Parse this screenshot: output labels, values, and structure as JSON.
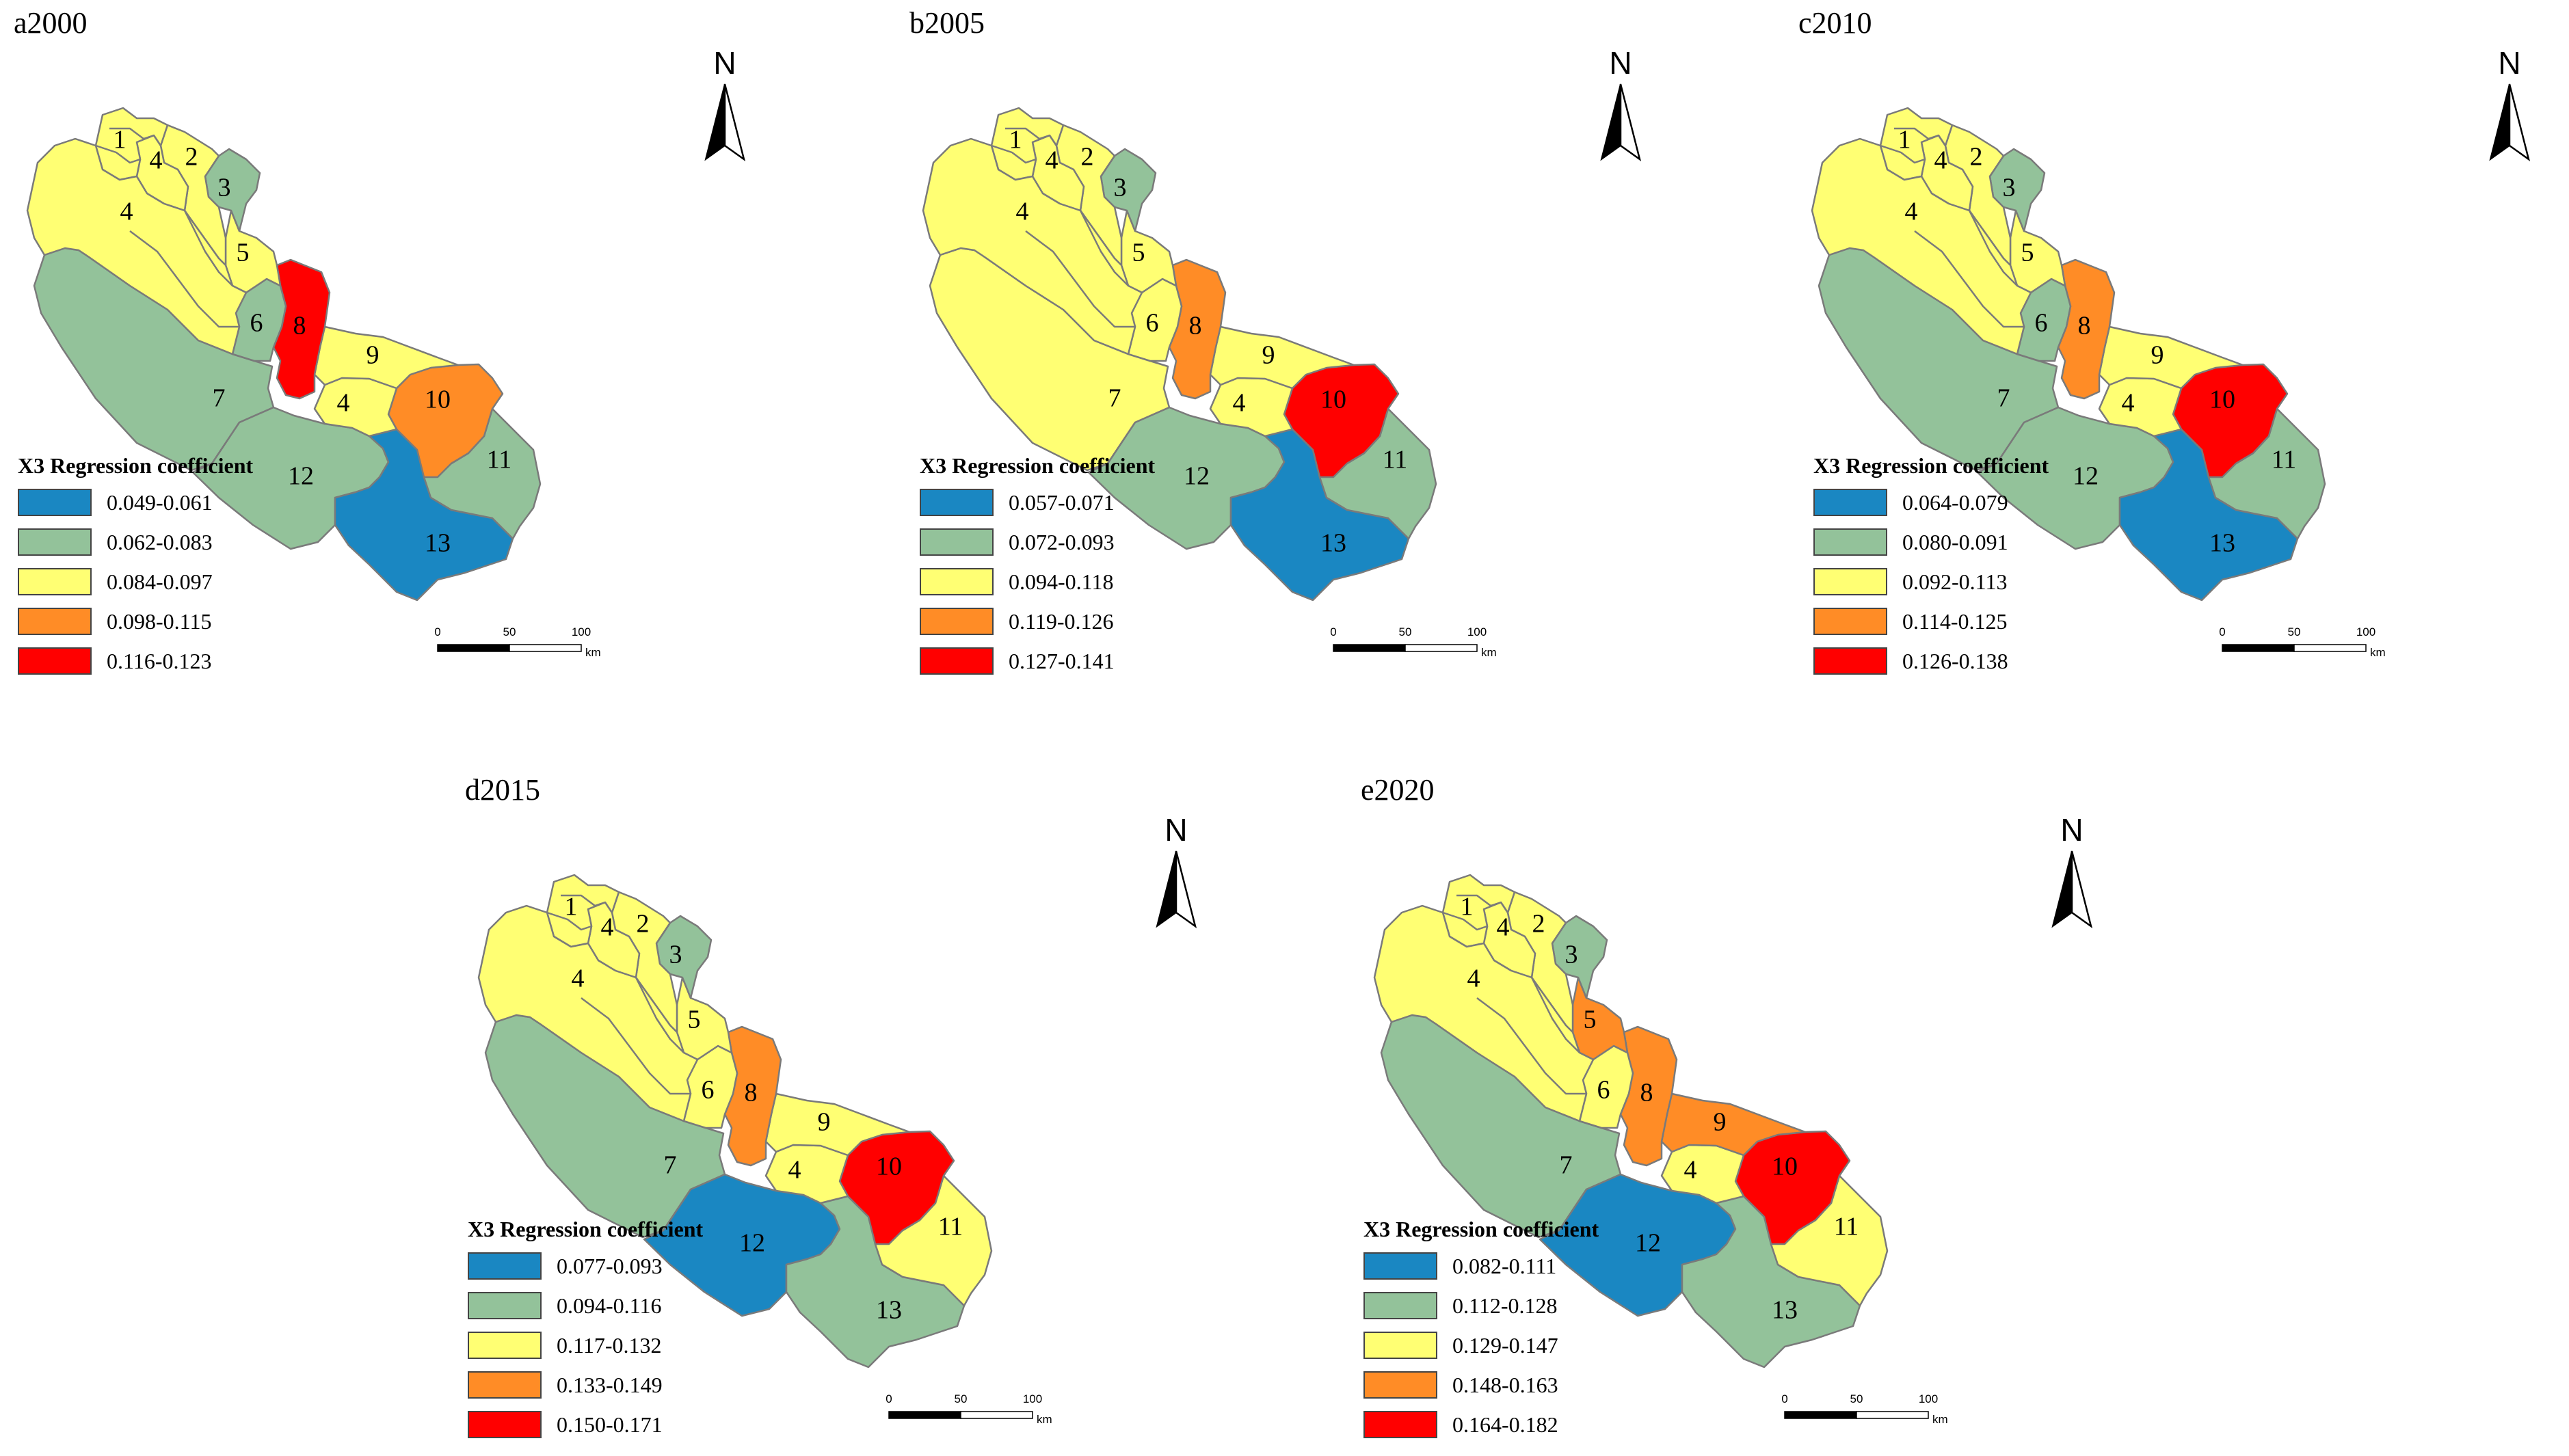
{
  "district_labels": [
    "1",
    "4",
    "2",
    "3",
    "4",
    "5",
    "6",
    "8",
    "7",
    "9",
    "4",
    "10",
    "11",
    "12",
    "13"
  ],
  "north_arrow": {
    "letter": "N"
  },
  "scale_bar": {
    "ticks": [
      "0",
      "50",
      "100"
    ],
    "unit": "km"
  },
  "colors": {
    "blue": "#1a87c2",
    "green": "#93c29a",
    "yellow": "#ffff73",
    "orange": "#ff8c26",
    "red": "#ff0000"
  },
  "panels": [
    {
      "title": "a2000",
      "legend_title": "X3 Regression coefficient",
      "legend": [
        {
          "label": "0.049-0.061",
          "color": "#1a87c2"
        },
        {
          "label": "0.062-0.083",
          "color": "#93c29a"
        },
        {
          "label": "0.084-0.097",
          "color": "#ffff73"
        },
        {
          "label": "0.098-0.115",
          "color": "#ff8c26"
        },
        {
          "label": "0.116-0.123",
          "color": "#ff0000"
        }
      ],
      "district_colors": {
        "d1": "#ffff73",
        "d2": "#ffff73",
        "d3": "#93c29a",
        "d4w": "#ffff73",
        "d4n": "#ffff73",
        "d4s": "#ffff73",
        "d5": "#ffff73",
        "d6": "#93c29a",
        "d7": "#93c29a",
        "d8": "#ff0000",
        "d9": "#ffff73",
        "d10": "#ff8c26",
        "d11": "#93c29a",
        "d12": "#93c29a",
        "d13": "#1a87c2"
      }
    },
    {
      "title": "b2005",
      "legend_title": "X3 Regression coefficient",
      "legend": [
        {
          "label": "0.057-0.071",
          "color": "#1a87c2"
        },
        {
          "label": "0.072-0.093",
          "color": "#93c29a"
        },
        {
          "label": "0.094-0.118",
          "color": "#ffff73"
        },
        {
          "label": "0.119-0.126",
          "color": "#ff8c26"
        },
        {
          "label": "0.127-0.141",
          "color": "#ff0000"
        }
      ],
      "district_colors": {
        "d1": "#ffff73",
        "d2": "#ffff73",
        "d3": "#93c29a",
        "d4w": "#ffff73",
        "d4n": "#ffff73",
        "d4s": "#ffff73",
        "d5": "#ffff73",
        "d6": "#ffff73",
        "d7": "#ffff73",
        "d8": "#ff8c26",
        "d9": "#ffff73",
        "d10": "#ff0000",
        "d11": "#93c29a",
        "d12": "#93c29a",
        "d13": "#1a87c2"
      }
    },
    {
      "title": "c2010",
      "legend_title": "X3 Regression coefficient",
      "legend": [
        {
          "label": "0.064-0.079",
          "color": "#1a87c2"
        },
        {
          "label": "0.080-0.091",
          "color": "#93c29a"
        },
        {
          "label": "0.092-0.113",
          "color": "#ffff73"
        },
        {
          "label": "0.114-0.125",
          "color": "#ff8c26"
        },
        {
          "label": "0.126-0.138",
          "color": "#ff0000"
        }
      ],
      "district_colors": {
        "d1": "#ffff73",
        "d2": "#ffff73",
        "d3": "#93c29a",
        "d4w": "#ffff73",
        "d4n": "#ffff73",
        "d4s": "#ffff73",
        "d5": "#ffff73",
        "d6": "#93c29a",
        "d7": "#93c29a",
        "d8": "#ff8c26",
        "d9": "#ffff73",
        "d10": "#ff0000",
        "d11": "#93c29a",
        "d12": "#93c29a",
        "d13": "#1a87c2"
      }
    },
    {
      "title": "d2015",
      "legend_title": "X3 Regression coefficient",
      "legend": [
        {
          "label": "0.077-0.093",
          "color": "#1a87c2"
        },
        {
          "label": "0.094-0.116",
          "color": "#93c29a"
        },
        {
          "label": "0.117-0.132",
          "color": "#ffff73"
        },
        {
          "label": "0.133-0.149",
          "color": "#ff8c26"
        },
        {
          "label": "0.150-0.171",
          "color": "#ff0000"
        }
      ],
      "district_colors": {
        "d1": "#ffff73",
        "d2": "#ffff73",
        "d3": "#93c29a",
        "d4w": "#ffff73",
        "d4n": "#ffff73",
        "d4s": "#ffff73",
        "d5": "#ffff73",
        "d6": "#ffff73",
        "d7": "#93c29a",
        "d8": "#ff8c26",
        "d9": "#ffff73",
        "d10": "#ff0000",
        "d11": "#ffff73",
        "d12": "#1a87c2",
        "d13": "#93c29a"
      }
    },
    {
      "title": "e2020",
      "legend_title": "X3 Regression coefficient",
      "legend": [
        {
          "label": "0.082-0.111",
          "color": "#1a87c2"
        },
        {
          "label": "0.112-0.128",
          "color": "#93c29a"
        },
        {
          "label": "0.129-0.147",
          "color": "#ffff73"
        },
        {
          "label": "0.148-0.163",
          "color": "#ff8c26"
        },
        {
          "label": "0.164-0.182",
          "color": "#ff0000"
        }
      ],
      "district_colors": {
        "d1": "#ffff73",
        "d2": "#ffff73",
        "d3": "#93c29a",
        "d4w": "#ffff73",
        "d4n": "#ffff73",
        "d4s": "#ffff73",
        "d5": "#ff8c26",
        "d6": "#ffff73",
        "d7": "#93c29a",
        "d8": "#ff8c26",
        "d9": "#ff8c26",
        "d10": "#ff0000",
        "d11": "#ffff73",
        "d12": "#1a87c2",
        "d13": "#93c29a"
      }
    }
  ]
}
